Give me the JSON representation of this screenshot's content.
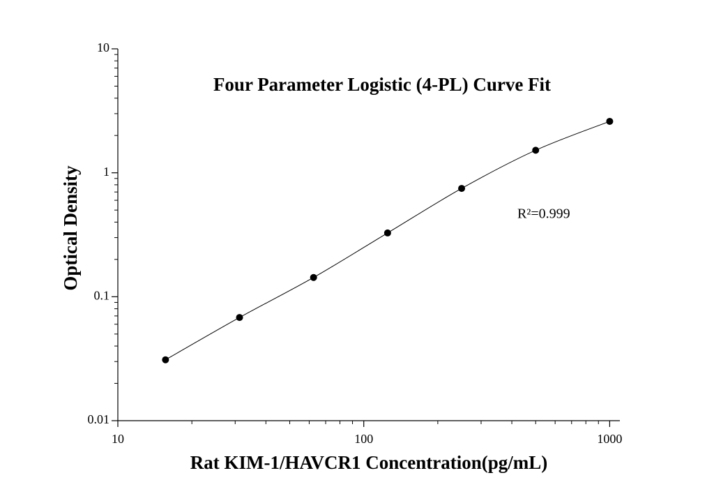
{
  "chart_data": {
    "type": "scatter",
    "title": "Four Parameter Logistic (4-PL) Curve Fit",
    "xlabel": "Rat KIM-1/HAVCR1 Concentration(pg/mL)",
    "ylabel": "Optical Density",
    "annotation": "R²=0.999",
    "xscale": "log",
    "yscale": "log",
    "xlim": [
      10,
      1100
    ],
    "ylim": [
      0.01,
      10
    ],
    "xticks": [
      10,
      100,
      1000
    ],
    "yticks": [
      0.01,
      0.1,
      1,
      10
    ],
    "xminorticks": [
      20,
      30,
      40,
      50,
      60,
      70,
      80,
      90,
      200,
      300,
      400,
      500,
      600,
      700,
      800,
      900
    ],
    "yminorticks": [
      0.02,
      0.03,
      0.04,
      0.05,
      0.06,
      0.07,
      0.08,
      0.09,
      0.2,
      0.3,
      0.4,
      0.5,
      0.6,
      0.7,
      0.8,
      0.9,
      2,
      3,
      4,
      5,
      6,
      7,
      8,
      9
    ],
    "series": [
      {
        "color": "#000000",
        "fit_line": true,
        "x": [
          15.625,
          31.25,
          62.5,
          125,
          250,
          500,
          1000
        ],
        "values": [
          0.031,
          0.068,
          0.143,
          0.327,
          0.748,
          1.52,
          2.6
        ]
      }
    ]
  }
}
